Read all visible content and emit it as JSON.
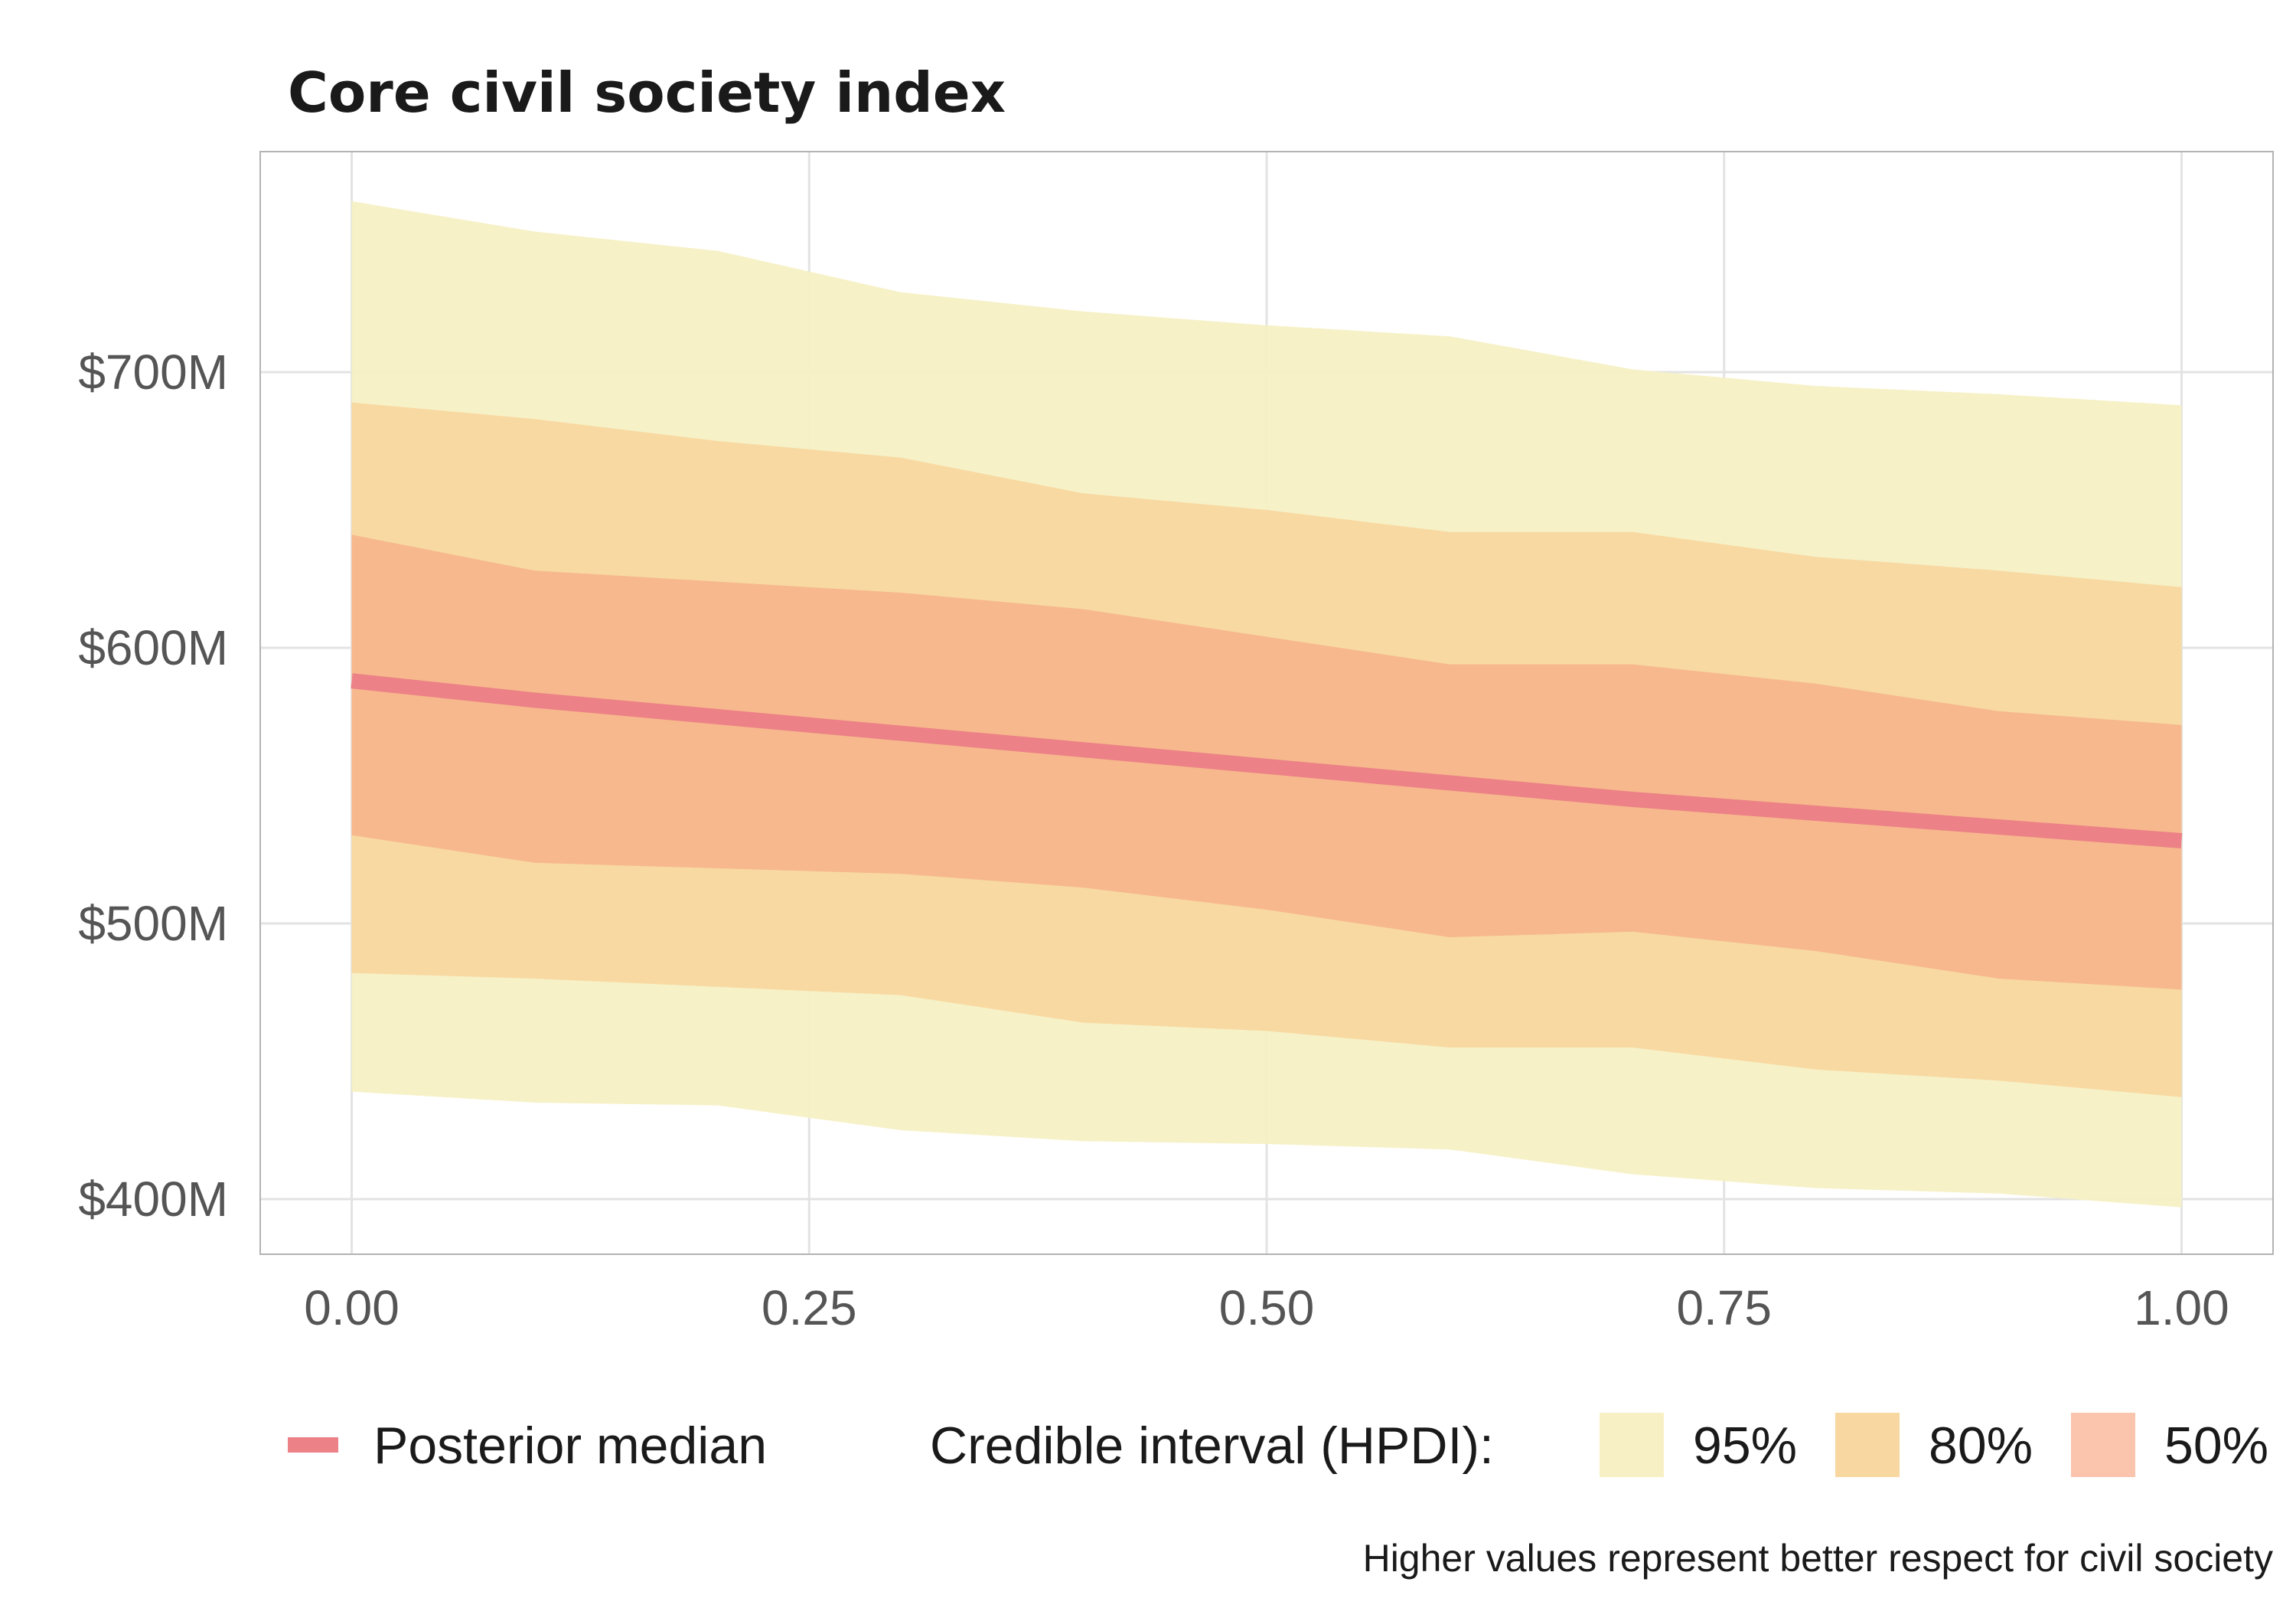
{
  "chart_data": {
    "type": "area",
    "title": "Core civil society index",
    "xlabel": "",
    "ylabel": "",
    "caption": "Higher values represent better respect for civil society",
    "xlim": [
      -0.05,
      1.05
    ],
    "ylim": [
      380,
      780
    ],
    "x_ticks": [
      0,
      0.25,
      0.5,
      0.75,
      1
    ],
    "x_tick_labels": [
      "0.00",
      "0.25",
      "0.50",
      "0.75",
      "1.00"
    ],
    "y_ticks": [
      400,
      500,
      600,
      700
    ],
    "y_tick_labels": [
      "$400M",
      "$500M",
      "$600M",
      "$700M"
    ],
    "grid": true,
    "x": [
      0,
      0.1,
      0.2,
      0.3,
      0.4,
      0.5,
      0.6,
      0.7,
      0.8,
      0.9,
      1.0
    ],
    "median": [
      588,
      581,
      575,
      569,
      563,
      557,
      551,
      545,
      540,
      535,
      530
    ],
    "bands": [
      {
        "level": "95%",
        "color": "#f7f0c4",
        "lower": [
          439,
          435,
          434,
          425,
          421,
          420,
          418,
          409,
          404,
          402,
          397
        ],
        "upper": [
          762,
          751,
          744,
          729,
          722,
          717,
          713,
          701,
          695,
          692,
          688
        ]
      },
      {
        "level": "80%",
        "color": "#f8d7a0",
        "lower": [
          482,
          480,
          477,
          474,
          464,
          461,
          455,
          455,
          447,
          443,
          437
        ],
        "upper": [
          689,
          683,
          675,
          669,
          656,
          650,
          642,
          642,
          633,
          628,
          622
        ]
      },
      {
        "level": "50%",
        "color": "#f7b68c",
        "lower": [
          532,
          522,
          520,
          518,
          513,
          505,
          495,
          497,
          490,
          480,
          476
        ],
        "upper": [
          641,
          628,
          624,
          620,
          614,
          604,
          594,
          594,
          587,
          577,
          572
        ]
      }
    ],
    "median_color": "#ec8287",
    "legend": {
      "position": "bottom",
      "median_label": "Posterior median",
      "interval_title": "Credible interval (HPDI):",
      "keys": [
        {
          "label": "95%",
          "color": "#f7f0c4"
        },
        {
          "label": "80%",
          "color": "#f8d7a0"
        },
        {
          "label": "50%",
          "color": "#fac4ad"
        }
      ]
    }
  }
}
